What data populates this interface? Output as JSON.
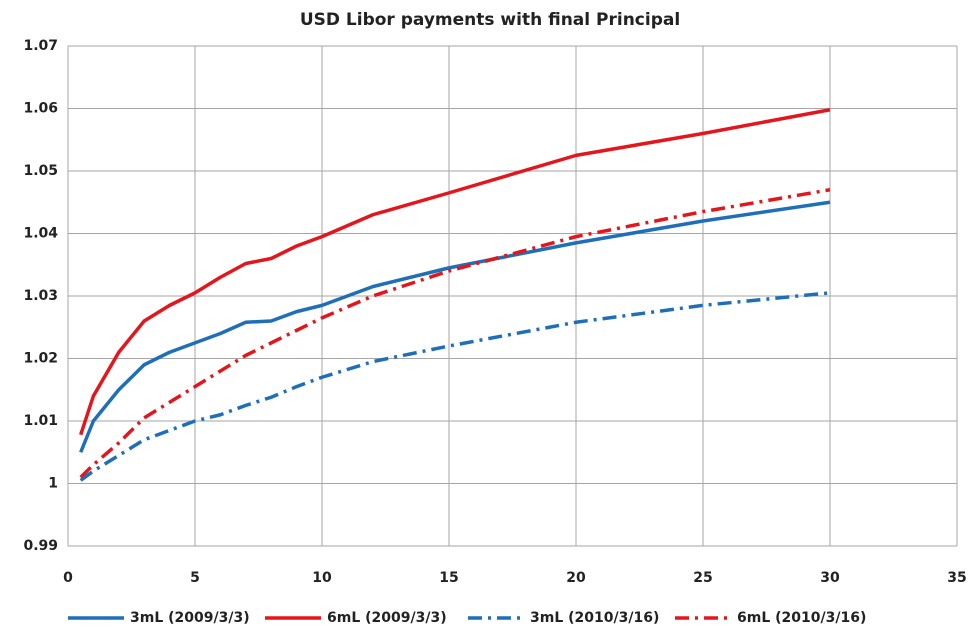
{
  "chart_data": {
    "type": "line",
    "title": "USD Libor payments with final Principal",
    "x": [
      0.5,
      1,
      2,
      3,
      4,
      5,
      6,
      7,
      8,
      9,
      10,
      12,
      15,
      20,
      25,
      30
    ],
    "series": [
      {
        "name": "3mL (2009/3/3)",
        "color": "#1f6fb8",
        "dash": "solid",
        "values": [
          1.005,
          1.01,
          1.015,
          1.019,
          1.021,
          1.0225,
          1.024,
          1.0258,
          1.026,
          1.0275,
          1.0285,
          1.0315,
          1.0345,
          1.0385,
          1.042,
          1.045
        ]
      },
      {
        "name": "6mL (2009/3/3)",
        "color": "#e3161e",
        "dash": "solid",
        "values": [
          1.0078,
          1.014,
          1.021,
          1.026,
          1.0285,
          1.0305,
          1.033,
          1.0352,
          1.036,
          1.038,
          1.0395,
          1.043,
          1.0465,
          1.0525,
          1.056,
          1.0598
        ]
      },
      {
        "name": "3mL (2010/3/16)",
        "color": "#1f6fb8",
        "dash": "dashdot",
        "values": [
          1.0005,
          1.002,
          1.0045,
          1.007,
          1.0085,
          1.01,
          1.011,
          1.0125,
          1.0138,
          1.0155,
          1.017,
          1.0195,
          1.022,
          1.0258,
          1.0285,
          1.0305
        ]
      },
      {
        "name": "6mL (2010/3/16)",
        "color": "#e3161e",
        "dash": "dashdot",
        "values": [
          1.001,
          1.003,
          1.0065,
          1.0105,
          1.013,
          1.0155,
          1.018,
          1.0205,
          1.0225,
          1.0245,
          1.0265,
          1.03,
          1.034,
          1.0395,
          1.0435,
          1.047
        ]
      }
    ],
    "xlim": [
      0,
      35
    ],
    "xticks": [
      0,
      5,
      10,
      15,
      20,
      25,
      30,
      35
    ],
    "ylim": [
      0.99,
      1.07
    ],
    "yticks": [
      0.99,
      1,
      1.01,
      1.02,
      1.03,
      1.04,
      1.05,
      1.06,
      1.07
    ],
    "grid": true,
    "legend": "bottom"
  }
}
